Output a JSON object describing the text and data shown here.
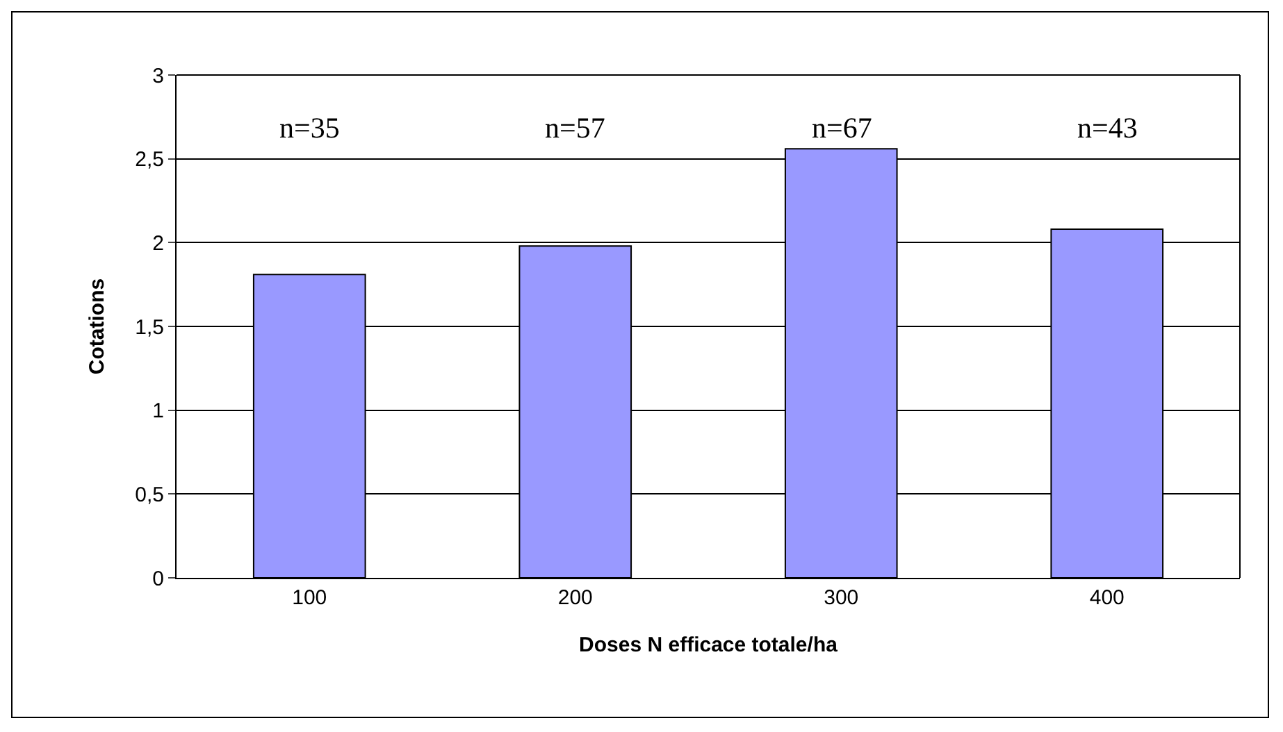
{
  "chart_data": {
    "type": "bar",
    "xlabel": "Doses N efficace totale/ha",
    "ylabel": "Cotations",
    "categories": [
      "100",
      "200",
      "300",
      "400"
    ],
    "values": [
      1.81,
      1.98,
      2.56,
      2.08
    ],
    "color": "#9999ff",
    "ylim": [
      0,
      3
    ],
    "yticks": [
      0,
      {
        "value": 0.5,
        "label": "0,5"
      },
      1,
      {
        "value": 1.5,
        "label": "1,5"
      },
      2,
      {
        "value": 2.5,
        "label": "2,5"
      },
      3
    ],
    "grid": "y",
    "annotations": [
      "n=35",
      "n=57",
      "n=67",
      "n=43"
    ]
  }
}
